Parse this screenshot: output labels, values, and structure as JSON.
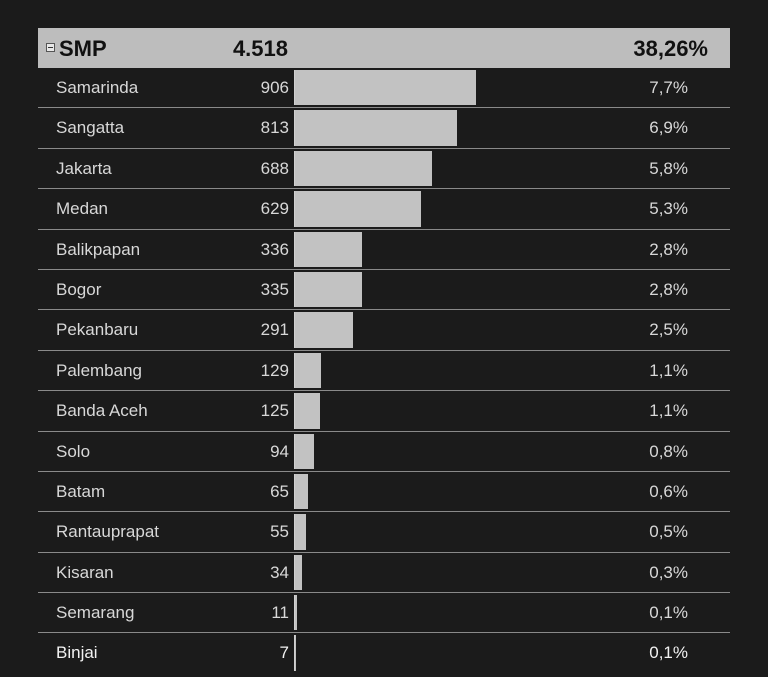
{
  "group": {
    "name": "SMP",
    "count": "4.518",
    "percent": "38,26%"
  },
  "max_count": 906,
  "rows": [
    {
      "city": "Samarinda",
      "count": "906",
      "value": 906,
      "percent": "7,7%"
    },
    {
      "city": "Sangatta",
      "count": "813",
      "value": 813,
      "percent": "6,9%"
    },
    {
      "city": "Jakarta",
      "count": "688",
      "value": 688,
      "percent": "5,8%"
    },
    {
      "city": "Medan",
      "count": "629",
      "value": 629,
      "percent": "5,3%"
    },
    {
      "city": "Balikpapan",
      "count": "336",
      "value": 336,
      "percent": "2,8%"
    },
    {
      "city": "Bogor",
      "count": "335",
      "value": 335,
      "percent": "2,8%"
    },
    {
      "city": "Pekanbaru",
      "count": "291",
      "value": 291,
      "percent": "2,5%"
    },
    {
      "city": "Palembang",
      "count": "129",
      "value": 129,
      "percent": "1,1%"
    },
    {
      "city": "Banda Aceh",
      "count": "125",
      "value": 125,
      "percent": "1,1%"
    },
    {
      "city": "Solo",
      "count": "94",
      "value": 94,
      "percent": "0,8%"
    },
    {
      "city": "Batam",
      "count": "65",
      "value": 65,
      "percent": "0,6%"
    },
    {
      "city": "Rantauprapat",
      "count": "55",
      "value": 55,
      "percent": "0,5%"
    },
    {
      "city": "Kisaran",
      "count": "34",
      "value": 34,
      "percent": "0,3%"
    },
    {
      "city": "Semarang",
      "count": "11",
      "value": 11,
      "percent": "0,1%"
    },
    {
      "city": "Binjai",
      "count": "7",
      "value": 7,
      "percent": "0,1%"
    }
  ],
  "colors": {
    "background": "#1b1b1b",
    "header_bg": "#bdbdbd",
    "bar": "#c2c2c2",
    "divider": "#8a8a8a"
  }
}
